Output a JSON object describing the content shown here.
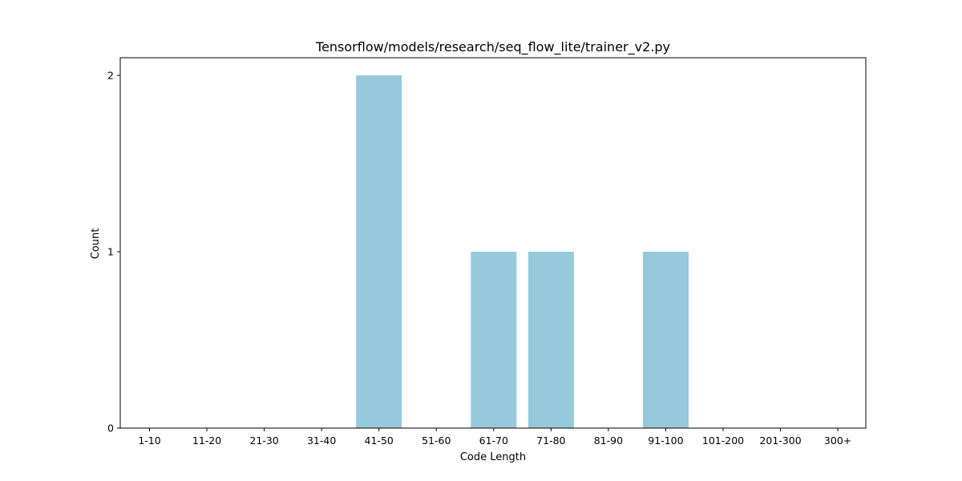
{
  "chart_data": {
    "type": "bar",
    "title": "Tensorflow/models/research/seq_flow_lite/trainer_v2.py",
    "xlabel": "Code Length",
    "ylabel": "Count",
    "categories": [
      "1-10",
      "11-20",
      "21-30",
      "31-40",
      "41-50",
      "51-60",
      "61-70",
      "71-80",
      "81-90",
      "91-100",
      "101-200",
      "201-300",
      "300+"
    ],
    "values": [
      0,
      0,
      0,
      0,
      2,
      0,
      1,
      1,
      0,
      1,
      0,
      0,
      0
    ],
    "ylim": [
      0,
      2.1
    ],
    "yticks": [
      0,
      1,
      2
    ],
    "grid": false,
    "bar_color": "#96c9dc"
  }
}
